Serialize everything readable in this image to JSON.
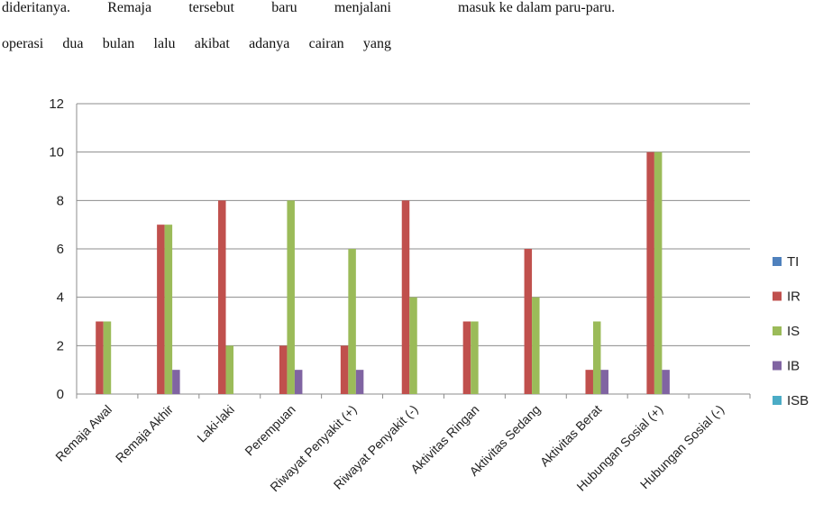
{
  "document": {
    "left_column": [
      "dideritanya.  Remaja  tersebut  baru  menjalani",
      "operasi dua bulan lalu akibat adanya cairan yang"
    ],
    "right_column": [
      "masuk ke dalam paru-paru."
    ]
  },
  "chart_data": {
    "type": "bar",
    "categories": [
      "Remaja Awal",
      "Remaja Akhir",
      "Laki-laki",
      "Perempuan",
      "Riwayat Penyakit (+)",
      "Riwayat Penyakit (-)",
      "Aktivitas Ringan",
      "Aktivitas Sedang",
      "Aktivitas Berat",
      "Hubungan Sosial (+)",
      "Hubungan Sosial (-)"
    ],
    "series": [
      {
        "name": "TI",
        "color": "#4f81bd",
        "values": [
          0,
          0,
          0,
          0,
          0,
          0,
          0,
          0,
          0,
          0,
          0
        ]
      },
      {
        "name": "IR",
        "color": "#c0504d",
        "values": [
          3,
          7,
          8,
          2,
          2,
          8,
          3,
          6,
          1,
          10,
          0
        ]
      },
      {
        "name": "IS",
        "color": "#9bbb59",
        "values": [
          3,
          7,
          2,
          8,
          6,
          4,
          3,
          4,
          3,
          10,
          0
        ]
      },
      {
        "name": "IB",
        "color": "#8064a2",
        "values": [
          0,
          1,
          0,
          1,
          1,
          0,
          0,
          0,
          1,
          1,
          0
        ]
      },
      {
        "name": "ISB",
        "color": "#4bacc6",
        "values": [
          0,
          0,
          0,
          0,
          0,
          0,
          0,
          0,
          0,
          0,
          0
        ]
      }
    ],
    "y_ticks": [
      "0",
      "2",
      "4",
      "6",
      "8",
      "10",
      "12"
    ],
    "ylim": [
      0,
      12
    ],
    "grid": true,
    "legend_position": "right",
    "title": "",
    "xlabel": "",
    "ylabel": ""
  }
}
